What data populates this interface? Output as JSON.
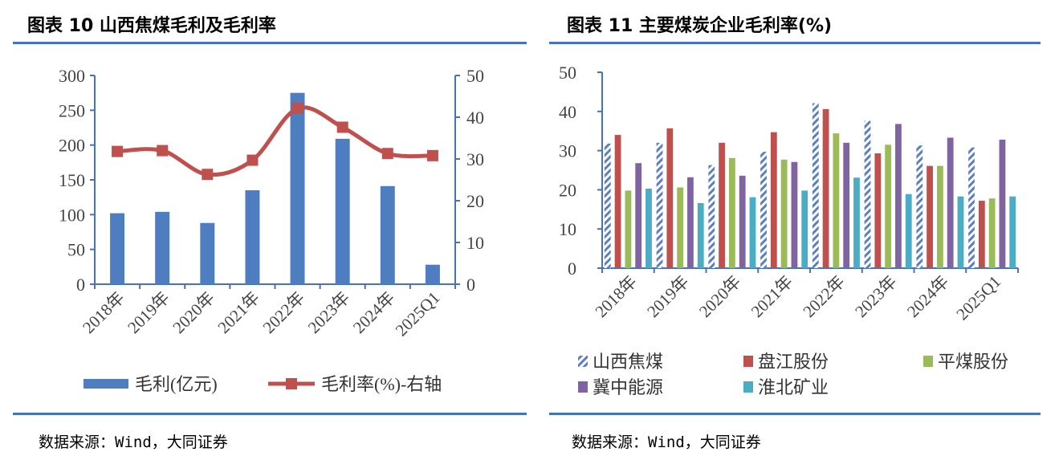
{
  "left": {
    "title": "图表 10  山西焦煤毛利及毛利率",
    "source": "数据来源：Wind，大同证券"
  },
  "right": {
    "title": "图表 11  主要煤炭企业毛利率(%)",
    "source": "数据来源：Wind，大同证券"
  },
  "colors": {
    "accent": "#4472c4",
    "bar_blue": "#4f7ec0",
    "line_red": "#c0504d",
    "axis": "#4472c4",
    "series": [
      "#5b7fc7",
      "#c0504d",
      "#9bbb59",
      "#8064a2",
      "#4bacc6"
    ]
  },
  "chart_data": [
    {
      "type": "bar",
      "title": "山西焦煤毛利及毛利率",
      "categories": [
        "2018年",
        "2019年",
        "2020年",
        "2021年",
        "2022年",
        "2023年",
        "2024年",
        "2025Q1"
      ],
      "series": [
        {
          "name": "毛利(亿元)",
          "type": "bar",
          "axis": "left",
          "values": [
            102,
            104,
            88,
            135,
            275,
            209,
            141,
            28
          ]
        },
        {
          "name": "毛利率(%)-右轴",
          "type": "line",
          "axis": "right",
          "values": [
            31.8,
            32.0,
            26.3,
            29.7,
            42.1,
            37.6,
            31.3,
            30.8
          ]
        }
      ],
      "y_left": {
        "min": 0,
        "max": 300,
        "ticks": [
          "0",
          "50",
          "100",
          "150",
          "200",
          "250",
          "300"
        ]
      },
      "y_right": {
        "min": 0,
        "max": 50,
        "ticks": [
          "0",
          "10",
          "20",
          "30",
          "40",
          "50"
        ]
      },
      "legend": "bottom"
    },
    {
      "type": "bar",
      "title": "主要煤炭企业毛利率(%)",
      "categories": [
        "2018年",
        "2019年",
        "2020年",
        "2021年",
        "2022年",
        "2023年",
        "2024年",
        "2025Q1"
      ],
      "series": [
        {
          "name": "山西焦煤",
          "values": [
            31.8,
            32.0,
            26.3,
            29.7,
            42.1,
            37.6,
            31.3,
            30.8
          ],
          "pattern": "hatched"
        },
        {
          "name": "盘江股份",
          "values": [
            34.0,
            35.7,
            32.0,
            34.7,
            40.6,
            29.3,
            26.1,
            17.2
          ]
        },
        {
          "name": "平煤股份",
          "values": [
            19.8,
            20.6,
            28.1,
            27.7,
            34.4,
            31.5,
            26.1,
            17.8
          ]
        },
        {
          "name": "冀中能源",
          "values": [
            26.8,
            23.2,
            23.6,
            27.1,
            32.0,
            36.8,
            33.3,
            32.8
          ]
        },
        {
          "name": "淮北矿业",
          "values": [
            20.3,
            16.6,
            18.1,
            19.8,
            23.1,
            18.9,
            18.3,
            18.3
          ]
        }
      ],
      "y": {
        "min": 0,
        "max": 50,
        "ticks": [
          "0",
          "10",
          "20",
          "30",
          "40",
          "50"
        ]
      },
      "legend": "bottom"
    }
  ]
}
